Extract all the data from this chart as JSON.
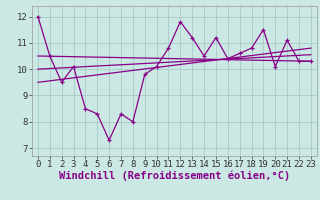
{
  "background_color": "#cce8e4",
  "grid_color": "#aacfcb",
  "line_color": "#880088",
  "x_ticks": [
    0,
    1,
    2,
    3,
    4,
    5,
    6,
    7,
    8,
    9,
    10,
    11,
    12,
    13,
    14,
    15,
    16,
    17,
    18,
    19,
    20,
    21,
    22,
    23
  ],
  "y_ticks": [
    7,
    8,
    9,
    10,
    11,
    12
  ],
  "xlabel": "Windchill (Refroidissement éolien,°C)",
  "xlim": [
    -0.5,
    23.5
  ],
  "ylim": [
    6.7,
    12.4
  ],
  "series1_x": [
    0,
    1,
    2,
    3,
    4,
    5,
    6,
    7,
    8,
    9,
    10,
    11,
    12,
    13,
    14,
    15,
    16,
    17,
    18,
    19,
    20,
    21,
    22,
    23
  ],
  "series1_y": [
    12.0,
    10.5,
    9.5,
    10.1,
    8.5,
    8.3,
    7.3,
    8.3,
    8.0,
    9.8,
    10.1,
    10.8,
    11.8,
    11.2,
    10.5,
    11.2,
    10.4,
    10.6,
    10.8,
    11.5,
    10.1,
    11.1,
    10.3,
    10.3
  ],
  "series2_x": [
    0,
    23
  ],
  "series2_y": [
    10.5,
    10.3
  ],
  "series3_x": [
    0,
    23
  ],
  "series3_y": [
    10.0,
    10.55
  ],
  "series4_x": [
    0,
    23
  ],
  "series4_y": [
    9.5,
    10.8
  ],
  "tick_fontsize": 6.5,
  "label_fontsize": 7.5
}
